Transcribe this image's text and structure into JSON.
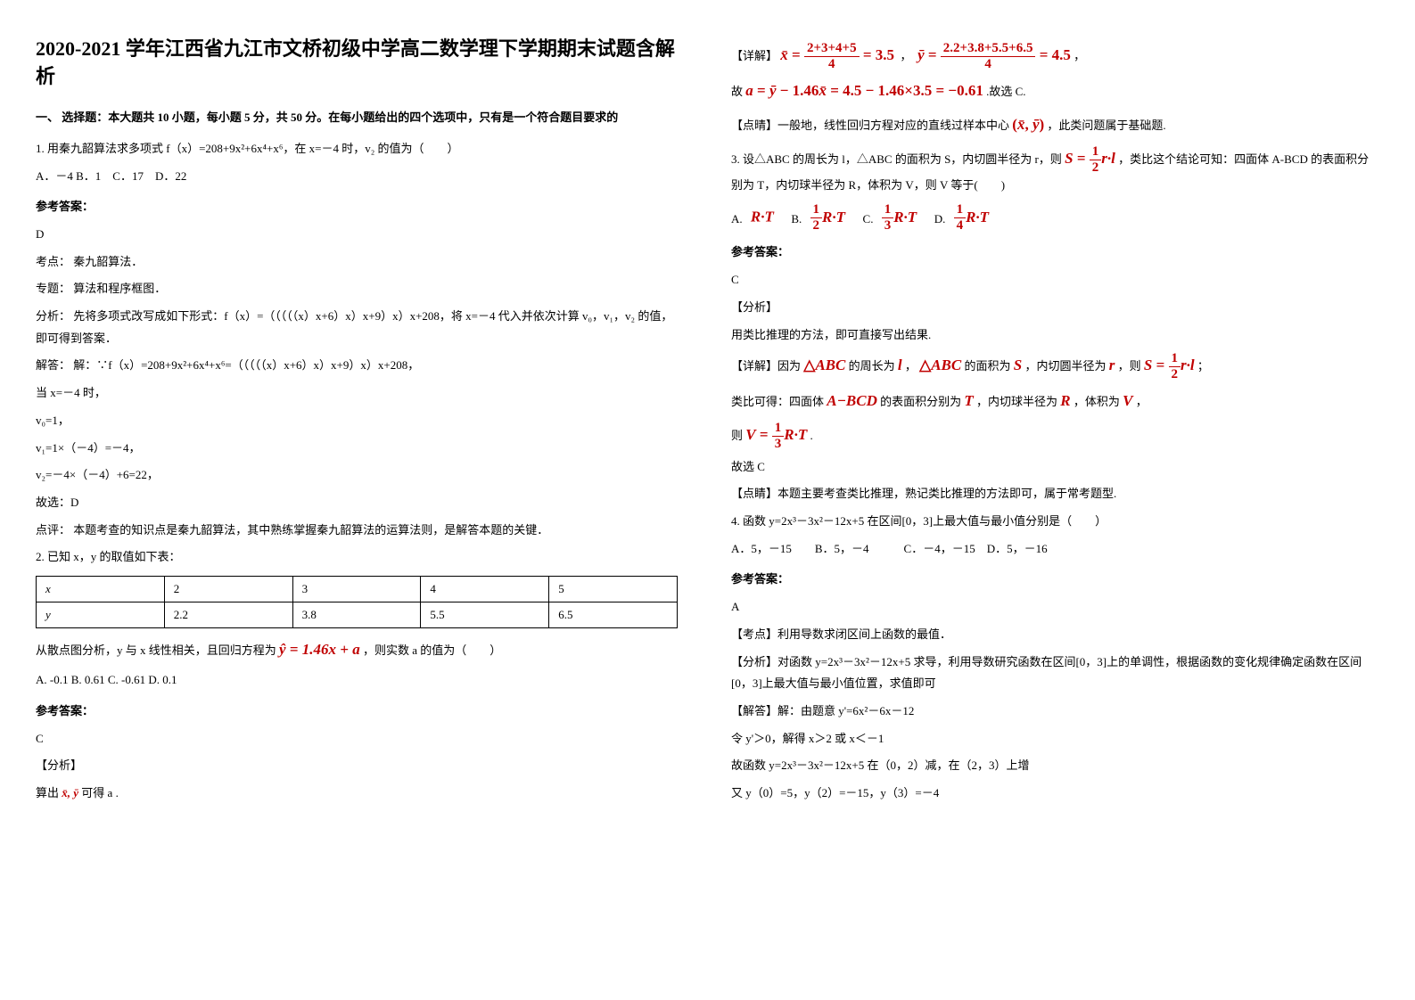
{
  "title": "2020-2021 学年江西省九江市文桥初级中学高二数学理下学期期末试题含解析",
  "section1_intro": "一、 选择题：本大题共 10 小题，每小题 5 分，共 50 分。在每小题给出的四个选项中，只有是一个符合题目要求的",
  "q1": {
    "stem": "1. 用秦九韶算法求多项式 f（x）=208+9x²+6x⁴+x⁶，在 x=－4 时，v₂ 的值为（　　）",
    "opts": "A．－4   B．1　C．17　D．22",
    "answer_label": "参考答案：",
    "ans": "D",
    "kaodian": "考点：  秦九韶算法．",
    "zhuanti": "专题：  算法和程序框图．",
    "fenxi": "分析：  先将多项式改写成如下形式：f（x）=（（（（（x）x+6）x）x+9）x）x+208，将 x=－4 代入并依次计算 v₀，v₁，v₂ 的值，即可得到答案．",
    "jieda1": "解答：  解：∵f（x）=208+9x²+6x⁴+x⁶=（（（（（x）x+6）x）x+9）x）x+208，",
    "jieda2": "当 x=－4 时，",
    "jieda3": "v₀=1，",
    "jieda4": "v₁=1×（－4）=－4，",
    "jieda5": "v₂=－4×（－4）+6=22，",
    "jieda6": "故选：D",
    "dianping": "点评：  本题考查的知识点是秦九韶算法，其中熟练掌握秦九韶算法的运算法则，是解答本题的关键．"
  },
  "q2": {
    "stem": "2. 已知 x，y 的取值如下表：",
    "table": {
      "r1": [
        "x",
        "2",
        "3",
        "4",
        "5"
      ],
      "r2": [
        "y",
        "2.2",
        "3.8",
        "5.5",
        "6.5"
      ]
    },
    "after": "从散点图分析，y 与 x 线性相关，且回归方程为",
    "eq1": "ŷ = 1.46x + a",
    "after2": "，则实数 a 的值为（　　）",
    "opts": "A. -0.1  B. 0.61  C. -0.61  D. 0.1",
    "answer_label": "参考答案：",
    "ans": "C",
    "fenxi_label": "【分析】",
    "fenxi": "算出",
    "xy": "x̄, ȳ",
    "fenxi2": "可得 a .",
    "xiangjie_label": "【详解】",
    "eq_xbar": "x̄ = (2+3+4+5)/4 = 3.5",
    "eq_ybar": "ȳ = (2.2+3.8+5.5+6.5)/4 = 4.5",
    "eq_a": "a = ȳ − 1.46x̄ = 4.5 − 1.46×3.5 = −0.61",
    "gu": "故",
    "guxuan": ".故选 C.",
    "dianqing_label": "【点晴】一般地，线性回归方程对应的直线过样本中心",
    "center": "(x̄, ȳ)",
    "dianqing2": "，此类问题属于基础题."
  },
  "q3": {
    "stem1": "3. 设△ABC 的周长为 l，△ABC 的面积为 S，内切圆半径为 r，则",
    "stem2": "，类比这个结论可知：四面体 A-BCD 的表面积分别为 T，内切球半径为 R，体积为 V，则 V 等于(　　)",
    "optA": "R·T",
    "answer_label": "参考答案：",
    "ans": "C",
    "fenxi_label": "【分析】",
    "fenxi": "用类比推理的方法，即可直接写出结果.",
    "xiangjie_label": "【详解】因为",
    "abc": "△ABC",
    "w1": " 的周长为 ",
    "l": "l",
    "w2": " ，",
    "w3": " 的面积为 ",
    "S": "S",
    "w4": " ，内切圆半径为 ",
    "r": "r",
    "w5": " ，则 ",
    "leibi": "类比可得：四面体 ",
    "abcd": "A−BCD",
    "leibi2": " 的表面积分别为 ",
    "T": "T",
    "leibi3": " ，内切球半径为 ",
    "R": "R",
    "leibi4": " ，体积为 ",
    "V": "V",
    "leibi5": " ，",
    "ze": "则 ",
    "guxuan": "故选 C",
    "dianqing": "【点睛】本题主要考查类比推理，熟记类比推理的方法即可，属于常考题型."
  },
  "q4": {
    "stem": "4. 函数 y=2x³－3x²－12x+5 在区间[0，3]上最大值与最小值分别是（　　）",
    "opts": "A．5，－15　　B．5，－4　　　C．－4，－15　D．5，－16",
    "answer_label": "参考答案：",
    "ans": "A",
    "kaodian": "【考点】利用导数求闭区间上函数的最值．",
    "fenxi": "【分析】对函数 y=2x³－3x²－12x+5 求导，利用导数研究函数在区间[0，3]上的单调性，根据函数的变化规律确定函数在区间[0，3]上最大值与最小值位置，求值即可",
    "jieda1": "【解答】解：由题意 y'=6x²－6x－12",
    "jieda2": "令 y'＞0，解得 x＞2 或 x＜－1",
    "jieda3": "故函数 y=2x³－3x²－12x+5 在（0，2）减，在（2，3）上增",
    "jieda4": "又 y（0）=5，y（2）=－15，y（3）=－4"
  }
}
